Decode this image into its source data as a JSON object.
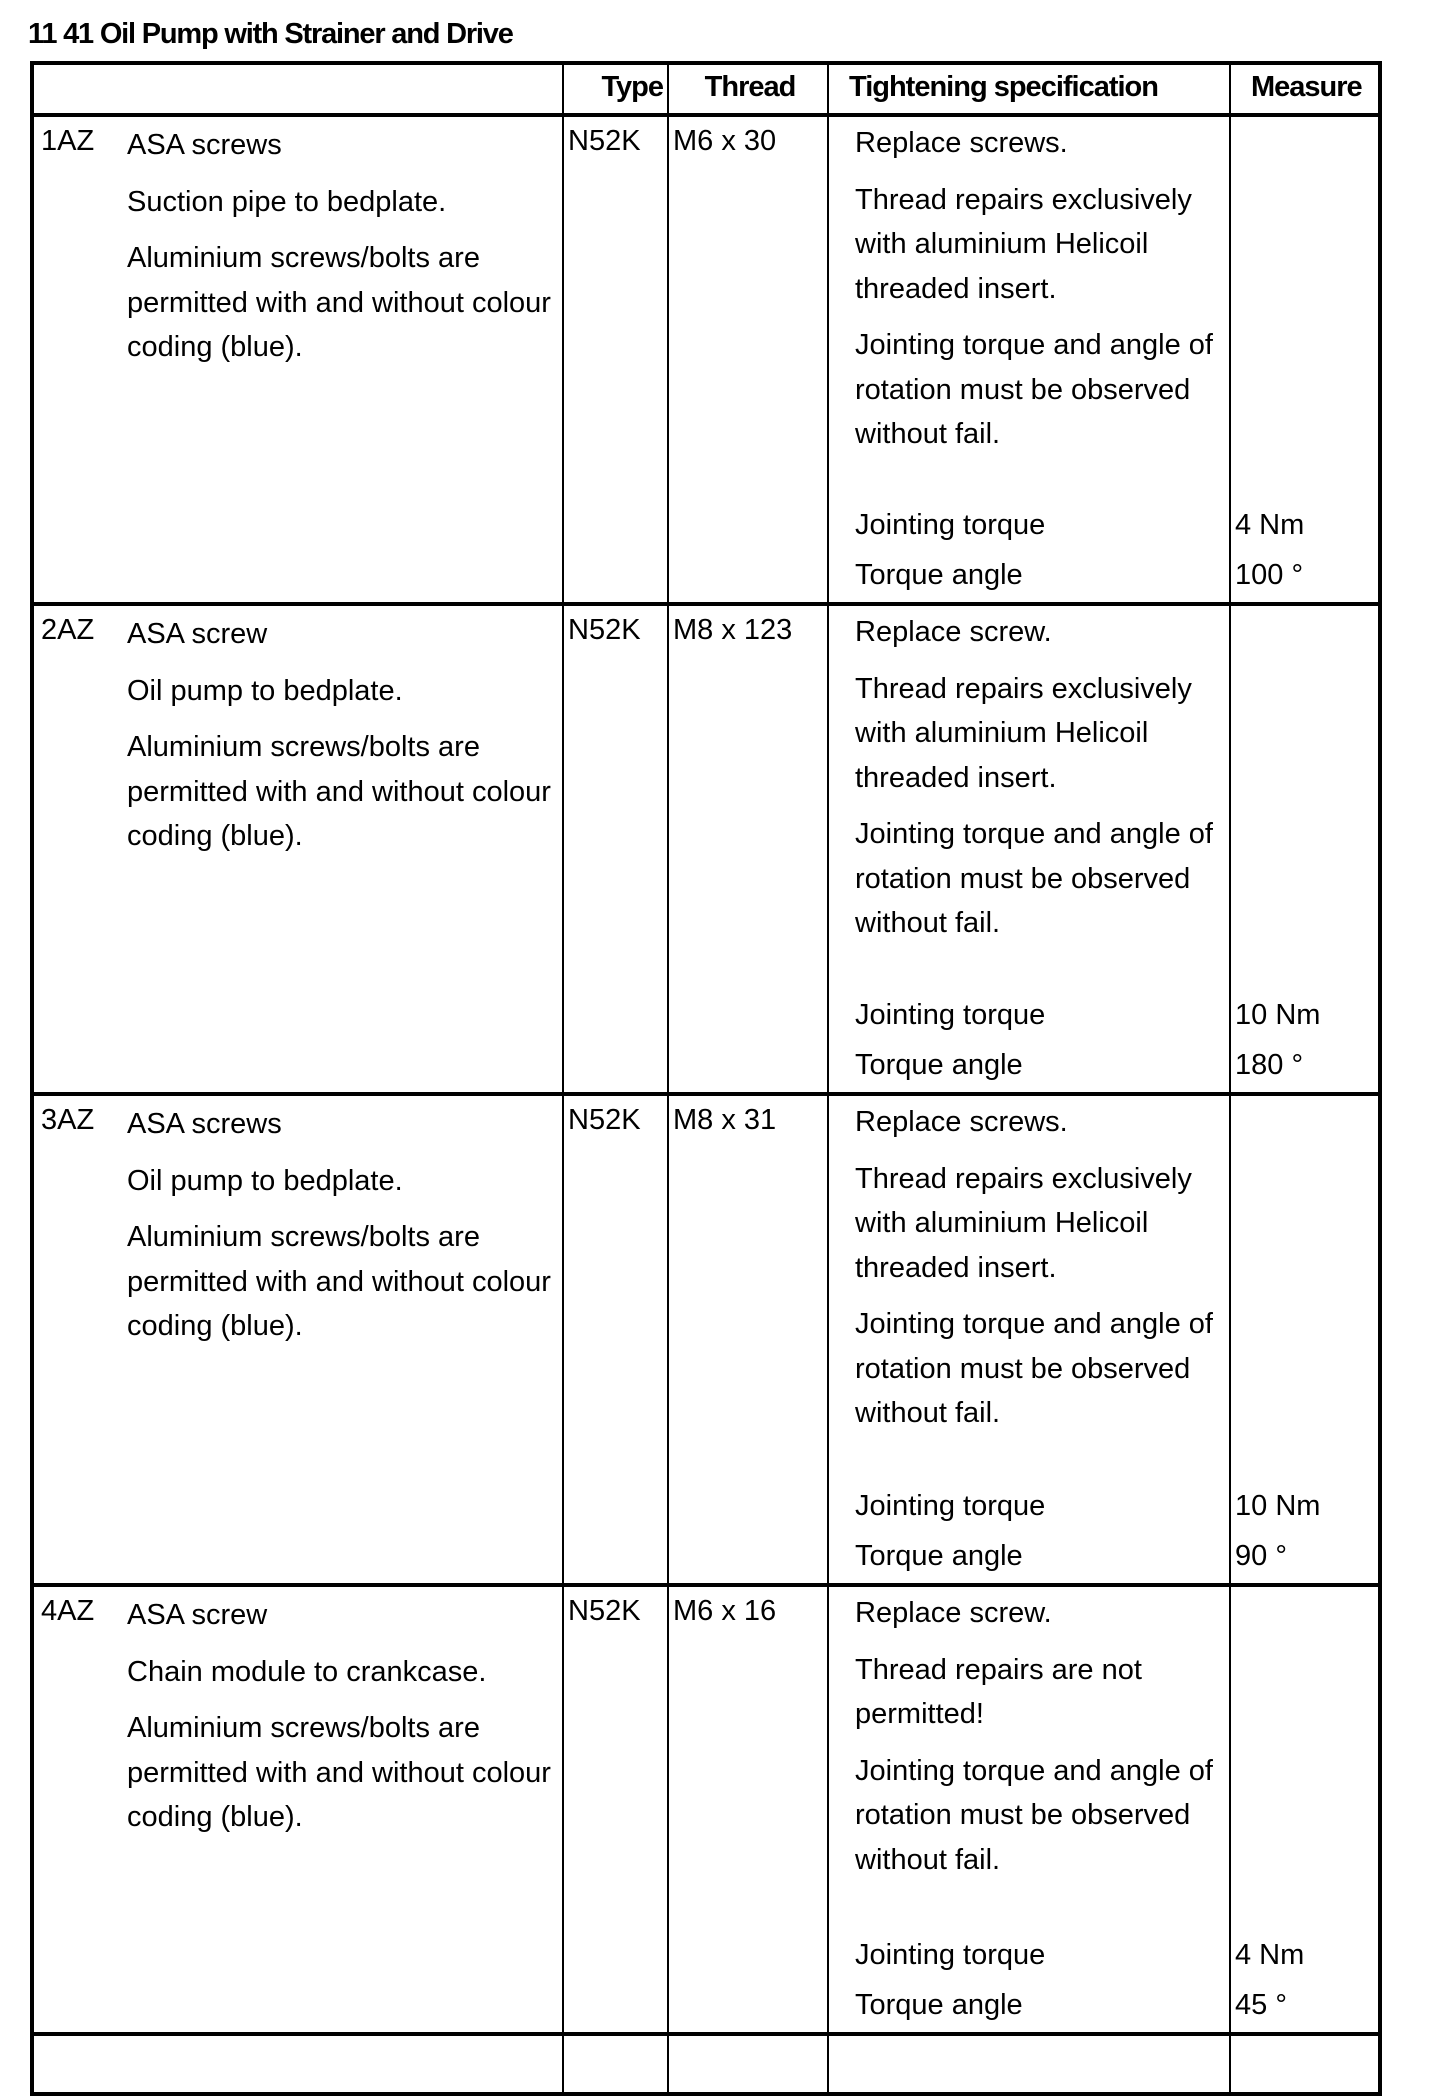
{
  "title": "11 41 Oil Pump with Strainer and Drive",
  "headers": {
    "desc": "",
    "type": "Type",
    "thread": "Thread",
    "spec": "Tightening specification",
    "measure": "Measure"
  },
  "rows": [
    {
      "id": "1AZ",
      "type": "N52K",
      "thread": "M6 x 30",
      "desc": [
        "ASA screws",
        "Suction pipe to bedplate.",
        "Aluminium screws/bolts are permitted with and without colour coding (blue)."
      ],
      "spec": [
        "Replace screws.",
        "Thread repairs exclusively with aluminium Helicoil threaded insert.",
        "Jointing torque and angle of rotation must be observed without fail."
      ],
      "measures": [
        {
          "label": "Jointing torque",
          "value": "4 Nm"
        },
        {
          "label": "Torque angle",
          "value": "100 °"
        }
      ]
    },
    {
      "id": "2AZ",
      "type": "N52K",
      "thread": "M8 x 123",
      "desc": [
        "ASA screw",
        "Oil pump to bedplate.",
        "Aluminium screws/bolts are permitted with and without colour coding (blue)."
      ],
      "spec": [
        "Replace screw.",
        "Thread repairs exclusively with aluminium Helicoil threaded insert.",
        "Jointing torque and angle of rotation must be observed without fail."
      ],
      "measures": [
        {
          "label": "Jointing torque",
          "value": "10 Nm"
        },
        {
          "label": "Torque angle",
          "value": "180 °"
        }
      ]
    },
    {
      "id": "3AZ",
      "type": "N52K",
      "thread": "M8 x 31",
      "desc": [
        "ASA screws",
        "Oil pump to bedplate.",
        "Aluminium screws/bolts are permitted with and without colour coding (blue)."
      ],
      "spec": [
        "Replace screws.",
        "Thread repairs exclusively with aluminium Helicoil threaded insert.",
        "Jointing torque and angle of rotation must be observed without fail."
      ],
      "measures": [
        {
          "label": "Jointing torque",
          "value": "10 Nm"
        },
        {
          "label": "Torque angle",
          "value": "90 °"
        }
      ]
    },
    {
      "id": "4AZ",
      "type": "N52K",
      "thread": "M6 x 16",
      "desc": [
        "ASA screw",
        "Chain module to crankcase.",
        "Aluminium screws/bolts are permitted with and without colour coding (blue)."
      ],
      "spec": [
        "Replace screw.",
        "Thread repairs are not permitted!",
        "Jointing torque and angle of rotation must be observed without fail."
      ],
      "measures": [
        {
          "label": "Jointing torque",
          "value": "4 Nm"
        },
        {
          "label": "Torque angle",
          "value": "45 °"
        }
      ]
    }
  ]
}
